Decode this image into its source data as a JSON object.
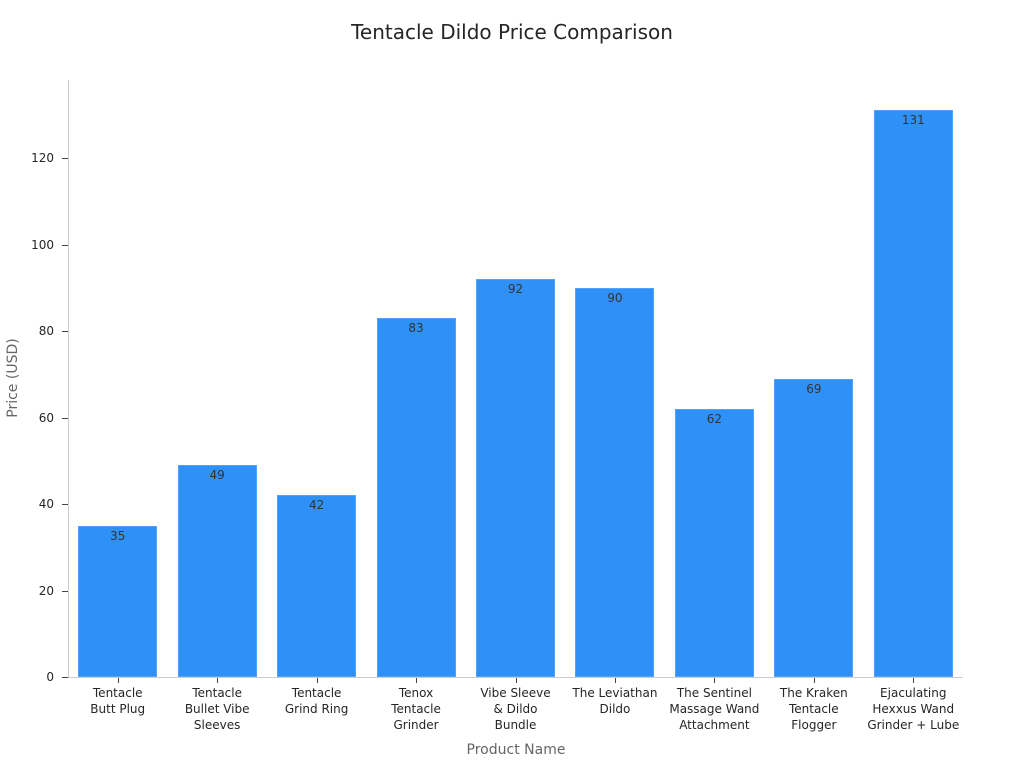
{
  "chart_data": {
    "type": "bar",
    "title": "Tentacle Dildo Price Comparison",
    "xlabel": "Product Name",
    "ylabel": "Price (USD)",
    "ylim": [
      0,
      138
    ],
    "yticks": [
      0,
      20,
      40,
      60,
      80,
      100,
      120
    ],
    "grid": false,
    "legend": null,
    "bar_color": "#2f91f8",
    "categories": [
      "Tentacle\nButt Plug",
      "Tentacle\nBullet Vibe\nSleeves",
      "Tentacle\nGrind Ring",
      "Tenox\nTentacle\nGrinder",
      "Vibe Sleeve\n& Dildo\nBundle",
      "The Leviathan\nDildo",
      "The Sentinel\nMassage Wand\nAttachment",
      "The Kraken\nTentacle\nFlogger",
      "Ejaculating\nHexxus Wand\nGrinder + Lube"
    ],
    "values": [
      35,
      49,
      42,
      83,
      92,
      90,
      62,
      69,
      131
    ],
    "value_labels": [
      "35",
      "49",
      "42",
      "83",
      "92",
      "90",
      "62",
      "69",
      "131"
    ]
  }
}
